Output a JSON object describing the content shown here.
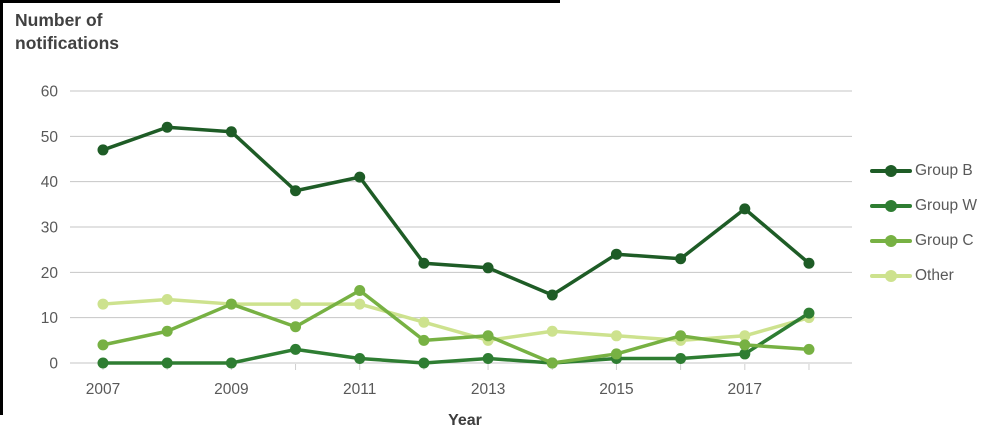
{
  "title": {
    "line1": "Number of",
    "line2": "notifications"
  },
  "x_axis": {
    "label": "Year",
    "shown_tick_labels": [
      "2007",
      "2009",
      "2011",
      "2013",
      "2015",
      "2017"
    ]
  },
  "y_axis": {
    "tick_labels": [
      "0",
      "10",
      "20",
      "30",
      "40",
      "50",
      "60"
    ]
  },
  "legend": {
    "entries": [
      "Group B",
      "Group W",
      "Group C",
      "Other"
    ]
  },
  "chart_data": {
    "type": "line",
    "title": "Number of notifications",
    "xlabel": "Year",
    "ylabel": "Number of notifications",
    "x": [
      2007,
      2008,
      2009,
      2010,
      2011,
      2012,
      2013,
      2014,
      2015,
      2016,
      2017,
      2018
    ],
    "x_tick_step": 2,
    "ylim": [
      0,
      60
    ],
    "y_tick_interval": 10,
    "grid": true,
    "legend_position": "right",
    "series": [
      {
        "name": "Group B",
        "color": "#1e5c26",
        "values": [
          47,
          52,
          51,
          38,
          41,
          22,
          21,
          15,
          24,
          23,
          34,
          22
        ]
      },
      {
        "name": "Group W",
        "color": "#2e7d32",
        "values": [
          0,
          0,
          0,
          3,
          1,
          0,
          1,
          0,
          1,
          1,
          2,
          11
        ]
      },
      {
        "name": "Group C",
        "color": "#77b143",
        "values": [
          4,
          7,
          13,
          8,
          16,
          5,
          6,
          0,
          2,
          6,
          4,
          3
        ]
      },
      {
        "name": "Other",
        "color": "#cde28e",
        "values": [
          13,
          14,
          13,
          13,
          13,
          9,
          5,
          7,
          6,
          5,
          6,
          10
        ]
      }
    ]
  },
  "colors": {
    "background": "#ffffff",
    "grid": "#c6c6c6",
    "tick": "#cfcfcf",
    "axis_text": "#595959",
    "title_text": "#414141",
    "legend_text": "#595959",
    "border": "#000000"
  }
}
